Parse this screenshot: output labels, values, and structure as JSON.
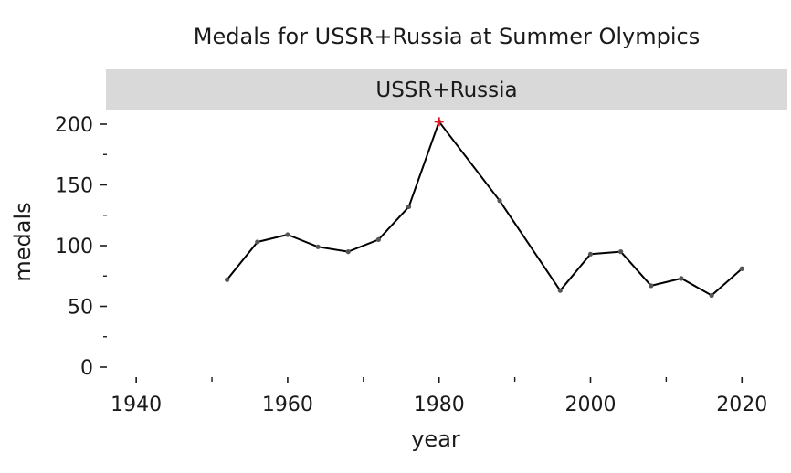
{
  "chart_data": {
    "type": "line",
    "title": "Medals for USSR+Russia at Summer Olympics",
    "facet_label": "USSR+Russia",
    "xlabel": "year",
    "ylabel": "medals",
    "xlim": [
      1936,
      2026
    ],
    "ylim": [
      0,
      200
    ],
    "x_ticks": [
      1940,
      1960,
      1980,
      2000,
      2020
    ],
    "x_minor_ticks": [
      1950,
      1970,
      1990,
      2010
    ],
    "y_ticks": [
      0,
      50,
      100,
      150,
      200
    ],
    "y_minor_ticks": [
      25,
      75,
      125,
      175
    ],
    "grid": false,
    "series": [
      {
        "x": [
          1952,
          1956,
          1960,
          1964,
          1968,
          1972,
          1976,
          1980,
          1988,
          1996,
          2000,
          2004,
          2008,
          2012,
          2016,
          2020
        ],
        "values": [
          72,
          103,
          109,
          99,
          95,
          105,
          132,
          202,
          137,
          63,
          93,
          95,
          67,
          73,
          59,
          81
        ]
      }
    ],
    "highlight": {
      "x": 1980,
      "value": 202,
      "marker": "plus",
      "color": "#e8141c"
    },
    "colors": {
      "line": "#000000",
      "strip_background": "#d9d9d9",
      "highlight": "#e8141c"
    }
  }
}
